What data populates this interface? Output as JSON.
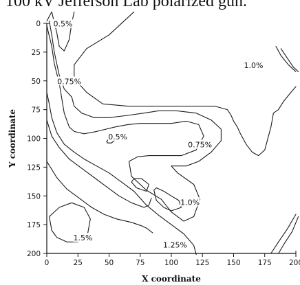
{
  "caption": "100 kV Jefferson Lab polarized gun.",
  "chart_data": {
    "type": "contour",
    "xlabel": "X coordinate",
    "ylabel": "Y coordinate",
    "xlim": [
      0,
      200
    ],
    "ylim": [
      0,
      200
    ],
    "y_inverted": true,
    "grid": false,
    "x_ticks": [
      0,
      25,
      50,
      75,
      100,
      125,
      150,
      175,
      200
    ],
    "y_ticks": [
      0,
      25,
      50,
      75,
      100,
      125,
      150,
      175,
      200
    ],
    "contour_labels": [
      {
        "text": "0.5%",
        "x": 13,
        "y": 1
      },
      {
        "text": "1.0%",
        "x": 166,
        "y": 37
      },
      {
        "text": "0.75%",
        "x": 18,
        "y": 51
      },
      {
        "text": "0.5%",
        "x": 57,
        "y": 99
      },
      {
        "text": "0.75%",
        "x": 123,
        "y": 106
      },
      {
        "text": "1.0%",
        "x": 115,
        "y": 156
      },
      {
        "text": "1.5%",
        "x": 29,
        "y": 187
      },
      {
        "text": "1.25%",
        "x": 103,
        "y": 193
      }
    ],
    "contours": [
      {
        "level": "0.5%",
        "points": [
          [
            0,
            -2
          ],
          [
            4,
            -10
          ],
          [
            8,
            8
          ],
          [
            10,
            20
          ],
          [
            14,
            24
          ],
          [
            18,
            14
          ],
          [
            20,
            0
          ],
          [
            22,
            -10
          ]
        ]
      },
      {
        "level": "1.0%",
        "points": [
          [
            70,
            -10
          ],
          [
            50,
            10
          ],
          [
            32,
            22
          ],
          [
            22,
            36
          ],
          [
            22,
            48
          ],
          [
            32,
            60
          ],
          [
            45,
            70
          ],
          [
            65,
            72
          ],
          [
            82,
            72
          ],
          [
            100,
            72
          ],
          [
            118,
            72
          ],
          [
            135,
            72
          ],
          [
            145,
            75
          ],
          [
            148,
            80
          ],
          [
            150,
            85
          ],
          [
            153,
            90
          ],
          [
            155,
            95
          ],
          [
            160,
            105
          ],
          [
            165,
            112
          ],
          [
            170,
            115
          ],
          [
            175,
            110
          ],
          [
            180,
            90
          ],
          [
            182,
            78
          ],
          [
            186,
            75
          ],
          [
            190,
            68
          ],
          [
            196,
            60
          ],
          [
            200,
            55
          ]
        ]
      },
      {
        "level": "0.75%",
        "points": [
          [
            0,
            2
          ],
          [
            4,
            20
          ],
          [
            6,
            35
          ],
          [
            10,
            52
          ],
          [
            12,
            65
          ],
          [
            14,
            78
          ],
          [
            18,
            90
          ],
          [
            22,
            94
          ],
          [
            30,
            96
          ],
          [
            40,
            94
          ],
          [
            55,
            90
          ],
          [
            65,
            88
          ],
          [
            75,
            87
          ],
          [
            88,
            87
          ],
          [
            100,
            87
          ],
          [
            112,
            85
          ],
          [
            122,
            88
          ],
          [
            126,
            98
          ],
          [
            120,
            110
          ],
          [
            108,
            115
          ],
          [
            95,
            115
          ],
          [
            82,
            115
          ],
          [
            73,
            116
          ],
          [
            66,
            120
          ],
          [
            68,
            133
          ],
          [
            80,
            145
          ],
          [
            92,
            153
          ],
          [
            100,
            164
          ],
          [
            110,
            172
          ],
          [
            118,
            168
          ],
          [
            123,
            153
          ],
          [
            118,
            140
          ],
          [
            105,
            130
          ],
          [
            100,
            124
          ],
          [
            112,
            124
          ],
          [
            122,
            120
          ],
          [
            132,
            112
          ],
          [
            140,
            102
          ],
          [
            140,
            92
          ],
          [
            132,
            84
          ],
          [
            120,
            78
          ],
          [
            104,
            76
          ],
          [
            90,
            76
          ],
          [
            78,
            78
          ],
          [
            65,
            80
          ],
          [
            50,
            82
          ],
          [
            38,
            82
          ],
          [
            28,
            78
          ],
          [
            22,
            72
          ],
          [
            20,
            64
          ],
          [
            14,
            57
          ],
          [
            10,
            45
          ],
          [
            6,
            25
          ],
          [
            4,
            10
          ],
          [
            2,
            -2
          ]
        ]
      },
      {
        "level": "0.5%",
        "points": [
          [
            0,
            60
          ],
          [
            2,
            70
          ],
          [
            4,
            82
          ],
          [
            8,
            95
          ],
          [
            14,
            105
          ],
          [
            22,
            112
          ],
          [
            30,
            118
          ],
          [
            40,
            124
          ],
          [
            50,
            130
          ],
          [
            60,
            138
          ],
          [
            70,
            146
          ],
          [
            80,
            158
          ],
          [
            90,
            167
          ],
          [
            100,
            175
          ],
          [
            110,
            183
          ],
          [
            118,
            193
          ],
          [
            120,
            201
          ]
        ]
      },
      {
        "level": "0.75%",
        "points": [
          [
            0,
            84
          ],
          [
            4,
            98
          ],
          [
            10,
            108
          ],
          [
            18,
            118
          ],
          [
            28,
            126
          ],
          [
            38,
            134
          ],
          [
            48,
            142
          ],
          [
            58,
            150
          ],
          [
            68,
            156
          ],
          [
            78,
            160
          ],
          [
            82,
            158
          ],
          [
            84,
            152
          ]
        ]
      },
      {
        "level": "1.0%",
        "points": [
          [
            0,
            120
          ],
          [
            8,
            134
          ],
          [
            16,
            144
          ],
          [
            26,
            152
          ],
          [
            36,
            160
          ],
          [
            46,
            166
          ],
          [
            56,
            170
          ],
          [
            68,
            173
          ],
          [
            76,
            176
          ],
          [
            80,
            178
          ],
          [
            85,
            182
          ]
        ]
      },
      {
        "level": "0.5%",
        "points": [
          [
            48,
            103
          ],
          [
            50,
            100
          ],
          [
            52,
            98
          ],
          [
            55,
            101
          ],
          [
            52,
            104
          ],
          [
            49,
            104
          ],
          [
            48,
            103
          ]
        ]
      },
      {
        "level": "1.0%",
        "points": [
          [
            68,
            138
          ],
          [
            72,
            143
          ],
          [
            80,
            146
          ],
          [
            82,
            140
          ],
          [
            76,
            135
          ],
          [
            70,
            135
          ],
          [
            68,
            138
          ]
        ]
      },
      {
        "level": "1.0%",
        "points": [
          [
            86,
            145
          ],
          [
            88,
            154
          ],
          [
            94,
            160
          ],
          [
            100,
            163
          ],
          [
            108,
            160
          ],
          [
            106,
            154
          ],
          [
            100,
            150
          ],
          [
            94,
            146
          ],
          [
            88,
            143
          ],
          [
            86,
            145
          ]
        ]
      },
      {
        "level": "1.5%",
        "points": [
          [
            2,
            168
          ],
          [
            10,
            160
          ],
          [
            20,
            156
          ],
          [
            30,
            160
          ],
          [
            35,
            170
          ],
          [
            33,
            182
          ],
          [
            25,
            190
          ],
          [
            16,
            190
          ],
          [
            8,
            186
          ],
          [
            4,
            180
          ],
          [
            2,
            168
          ]
        ]
      },
      {
        "level": "edge",
        "points": [
          [
            184,
            20
          ],
          [
            188,
            28
          ],
          [
            194,
            36
          ],
          [
            200,
            42
          ]
        ]
      },
      {
        "level": "edge",
        "points": [
          [
            188,
            22
          ],
          [
            193,
            30
          ],
          [
            198,
            38
          ],
          [
            202,
            42
          ]
        ]
      },
      {
        "level": "edge",
        "points": [
          [
            180,
            200
          ],
          [
            186,
            190
          ],
          [
            193,
            179
          ],
          [
            200,
            166
          ]
        ]
      },
      {
        "level": "edge",
        "points": [
          [
            186,
            200
          ],
          [
            191,
            191
          ],
          [
            197,
            181
          ],
          [
            202,
            168
          ]
        ]
      }
    ]
  }
}
